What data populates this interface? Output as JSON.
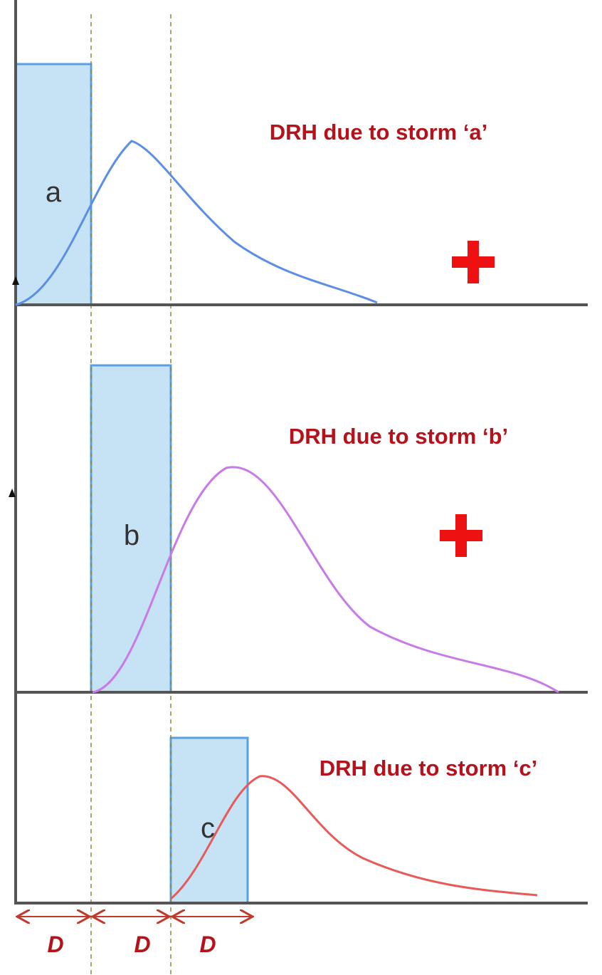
{
  "panels": [
    {
      "storm_label": "a",
      "drh_label": "DRH due to storm ‘a’"
    },
    {
      "storm_label": "b",
      "drh_label": "DRH due to storm ‘b’"
    },
    {
      "storm_label": "c",
      "drh_label": "DRH due to storm ‘c’"
    }
  ],
  "durations": [
    "D",
    "D",
    "D"
  ]
}
